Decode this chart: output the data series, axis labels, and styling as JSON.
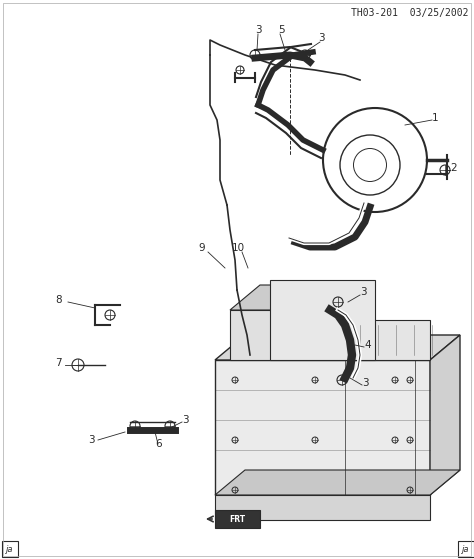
{
  "title": "TH03-201  03/25/2002",
  "background_color": "#ffffff",
  "fig_width": 4.74,
  "fig_height": 5.59,
  "dpi": 100,
  "line_color": "#2a2a2a",
  "label_color": "#2a2a2a",
  "corner_label_left": "ja",
  "corner_label_right": "ja"
}
